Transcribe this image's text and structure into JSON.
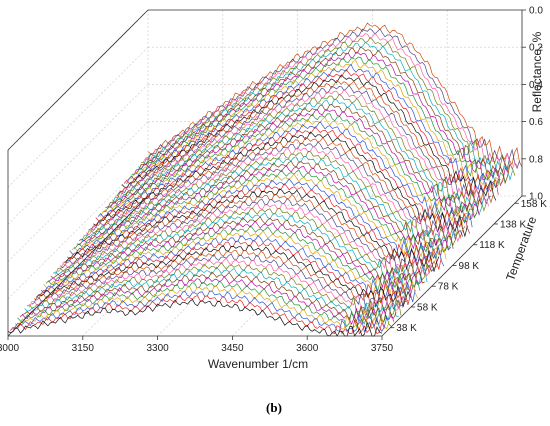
{
  "panel_label": "(b)",
  "chart_data": {
    "type": "line",
    "subtype": "3d-waterfall",
    "title": "",
    "xlabel": "Wavenumber 1/cm",
    "ylabel": "Reflectance, %",
    "zlabel": "Temperature",
    "x_range": [
      3000,
      3750
    ],
    "y_range": [
      0.0,
      1.0
    ],
    "y_inverted": true,
    "x_ticks": [
      "3000",
      "3150",
      "3300",
      "3450",
      "3600",
      "3750"
    ],
    "y_ticks": [
      "0.0",
      "0.2",
      "0.4",
      "0.6",
      "0.8",
      "1.0"
    ],
    "z_ticks": [
      "38 K",
      "58 K",
      "78 K",
      "98 K",
      "118 K",
      "138 K",
      "158 K"
    ],
    "z_range_K": [
      30,
      165
    ],
    "grid": true,
    "legend": "none",
    "num_series": 60,
    "series_colors": [
      "#000000",
      "#e41a1c",
      "#1f4fd6",
      "#e0a000",
      "#1a8f2f",
      "#b4009e",
      "#7a3b00",
      "#00a6c2",
      "#6b7a00",
      "#ff55aa",
      "#404080",
      "#cc4400"
    ],
    "profile_description": "Broad O-H band reflectance, dip to high reflectance near 3700 1/cm",
    "profile_front_K38": {
      "x": [
        3000,
        3100,
        3200,
        3250,
        3300,
        3350,
        3400,
        3450,
        3500,
        3550,
        3600,
        3650,
        3680,
        3700,
        3720,
        3750
      ],
      "y": [
        0.98,
        0.92,
        0.86,
        0.88,
        0.84,
        0.82,
        0.82,
        0.84,
        0.87,
        0.92,
        0.96,
        0.99,
        1.0,
        0.97,
        0.98,
        0.98
      ]
    },
    "profile_back_K158": {
      "x": [
        3000,
        3100,
        3200,
        3300,
        3400,
        3450,
        3500,
        3550,
        3600,
        3650,
        3700,
        3750
      ],
      "y": [
        0.78,
        0.6,
        0.42,
        0.25,
        0.12,
        0.08,
        0.12,
        0.25,
        0.45,
        0.65,
        0.78,
        0.8
      ]
    }
  }
}
